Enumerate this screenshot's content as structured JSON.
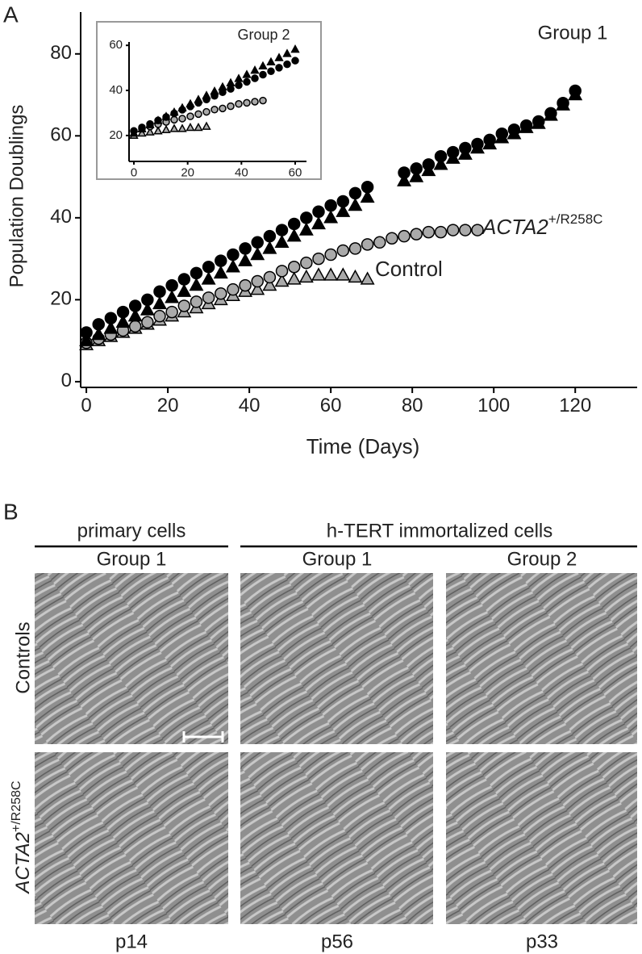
{
  "panel_labels": [
    "A",
    "B"
  ],
  "chart_data": [
    {
      "type": "scatter",
      "title": "Group 1",
      "xlabel": "Time (Days)",
      "ylabel": "Population Doublings",
      "xlim": [
        -1.4,
        135.2
      ],
      "ylim": [
        -1.4,
        90.2
      ],
      "xticks": [
        0,
        20,
        40,
        60,
        80,
        100,
        120
      ],
      "yticks": [
        0,
        20,
        40,
        60,
        80
      ],
      "annotations": [
        {
          "text": "ACTA2",
          "superscript": "+/R258C"
        },
        {
          "text": "Control"
        }
      ],
      "series": [
        {
          "marker": "triangle",
          "color": "#aaaaaa",
          "x": [
            0,
            3,
            6,
            9,
            12,
            15,
            18,
            21,
            24,
            27,
            30,
            33,
            36,
            39,
            42,
            45,
            48,
            51,
            54,
            57,
            60,
            63,
            66,
            69
          ],
          "values": [
            9,
            10,
            11,
            12,
            13,
            14,
            15,
            16,
            17,
            18,
            19,
            20,
            21,
            22,
            22.5,
            23.5,
            24.5,
            25,
            25.5,
            26,
            26,
            26,
            25.5,
            25
          ]
        },
        {
          "marker": "circle",
          "color": "#aaaaaa",
          "x": [
            0,
            3,
            6,
            9,
            12,
            15,
            18,
            21,
            24,
            27,
            30,
            33,
            36,
            39,
            42,
            45,
            48,
            51,
            54,
            57,
            60,
            63,
            66,
            69,
            72,
            75,
            78,
            81,
            84,
            87,
            90,
            93,
            96
          ],
          "values": [
            9.5,
            10.5,
            11.5,
            12.5,
            13.5,
            14.5,
            16,
            17,
            18.5,
            19.5,
            20.5,
            21.5,
            22.5,
            23.5,
            24.5,
            25.5,
            27,
            28,
            29,
            30,
            31,
            32,
            32.5,
            33.5,
            34,
            35,
            35.5,
            36,
            36.5,
            36.5,
            37,
            37,
            37
          ]
        },
        {
          "marker": "triangle",
          "color": "#000000",
          "x": [
            0,
            3,
            6,
            9,
            12,
            15,
            18,
            21,
            24,
            27,
            30,
            33,
            36,
            39,
            42,
            45,
            48,
            51,
            54,
            57,
            60,
            63,
            66,
            69,
            78,
            81,
            84,
            87,
            90,
            93,
            96,
            99,
            102,
            105,
            108,
            111,
            114,
            117,
            120
          ],
          "values": [
            10,
            11.5,
            13,
            14.5,
            16,
            17.5,
            19,
            20.5,
            22,
            23.5,
            25,
            26.5,
            28,
            29.5,
            31,
            32.5,
            34,
            35.5,
            37,
            38.5,
            40,
            41.5,
            43,
            45,
            49,
            50,
            51.5,
            53,
            54.5,
            55.5,
            57,
            58,
            59.5,
            60.5,
            62,
            63,
            65,
            67.5,
            70
          ]
        },
        {
          "marker": "circle",
          "color": "#000000",
          "x": [
            0,
            3,
            6,
            9,
            12,
            15,
            18,
            21,
            24,
            27,
            30,
            33,
            36,
            39,
            42,
            45,
            48,
            51,
            54,
            57,
            60,
            63,
            66,
            69,
            78,
            81,
            84,
            87,
            90,
            93,
            96,
            99,
            102,
            105,
            108,
            111,
            114,
            117,
            120
          ],
          "values": [
            12,
            14,
            15.5,
            17,
            18.5,
            20,
            22,
            23.5,
            25,
            26.5,
            28,
            29.5,
            31,
            32.5,
            34,
            35.5,
            37,
            38.5,
            40,
            41.5,
            43,
            44,
            46,
            47.5,
            51,
            52,
            53,
            55,
            56,
            57,
            58,
            59,
            60.5,
            61.5,
            62.5,
            63.5,
            65.5,
            68,
            71
          ]
        }
      ]
    },
    {
      "type": "scatter",
      "title": "Group 2",
      "xlim": [
        -1.8,
        64.2
      ],
      "ylim": [
        8.5,
        61.5
      ],
      "xticks": [
        0,
        20,
        40,
        60
      ],
      "yticks": [
        20,
        40,
        60
      ],
      "series": [
        {
          "marker": "triangle",
          "color": "#aaaaaa",
          "x": [
            0,
            3,
            6,
            9,
            12,
            15,
            18,
            21,
            24,
            27
          ],
          "values": [
            20,
            21,
            21.5,
            22,
            22.5,
            23,
            23,
            23.5,
            23.5,
            24
          ]
        },
        {
          "marker": "circle",
          "color": "#aaaaaa",
          "x": [
            0,
            3,
            6,
            9,
            12,
            15,
            18,
            21,
            24,
            27,
            30,
            33,
            36,
            39,
            42,
            45,
            48
          ],
          "values": [
            22,
            23,
            24,
            25,
            26,
            27,
            27.5,
            28.5,
            29.5,
            30.5,
            31.5,
            32,
            33,
            34,
            34.5,
            35,
            35.5
          ]
        },
        {
          "marker": "triangle",
          "color": "#000000",
          "x": [
            0,
            3,
            6,
            9,
            12,
            15,
            18,
            21,
            24,
            27,
            30,
            33,
            36,
            39,
            42,
            45,
            48,
            51,
            54,
            57,
            60
          ],
          "values": [
            21,
            22.9,
            24.7,
            26.6,
            28.4,
            30.3,
            32.2,
            34,
            35.9,
            37.7,
            39.6,
            41.5,
            43.3,
            45.2,
            47,
            48.9,
            50.8,
            52.6,
            54.5,
            56.3,
            58.2
          ]
        },
        {
          "marker": "circle",
          "color": "#000000",
          "x": [
            0,
            3,
            6,
            9,
            12,
            15,
            18,
            21,
            24,
            27,
            30,
            33,
            36,
            39,
            42,
            45,
            48,
            51,
            54,
            57,
            60
          ],
          "values": [
            22,
            23.6,
            25.1,
            26.7,
            28.2,
            29.8,
            31.4,
            32.9,
            34.5,
            36,
            37.6,
            39.2,
            40.7,
            42.3,
            43.8,
            45.4,
            47,
            48.5,
            50.1,
            51.6,
            53.2
          ]
        }
      ]
    }
  ],
  "panel_b": {
    "groups": [
      "primary cells",
      "h-TERT immortalized cells"
    ],
    "columns": [
      "Group 1",
      "Group 1",
      "Group 2"
    ],
    "rows": [
      {
        "text": "Controls"
      },
      {
        "text": "ACTA2",
        "superscript": "+/R258C"
      }
    ],
    "passages": [
      "p14",
      "p56",
      "p33"
    ]
  }
}
